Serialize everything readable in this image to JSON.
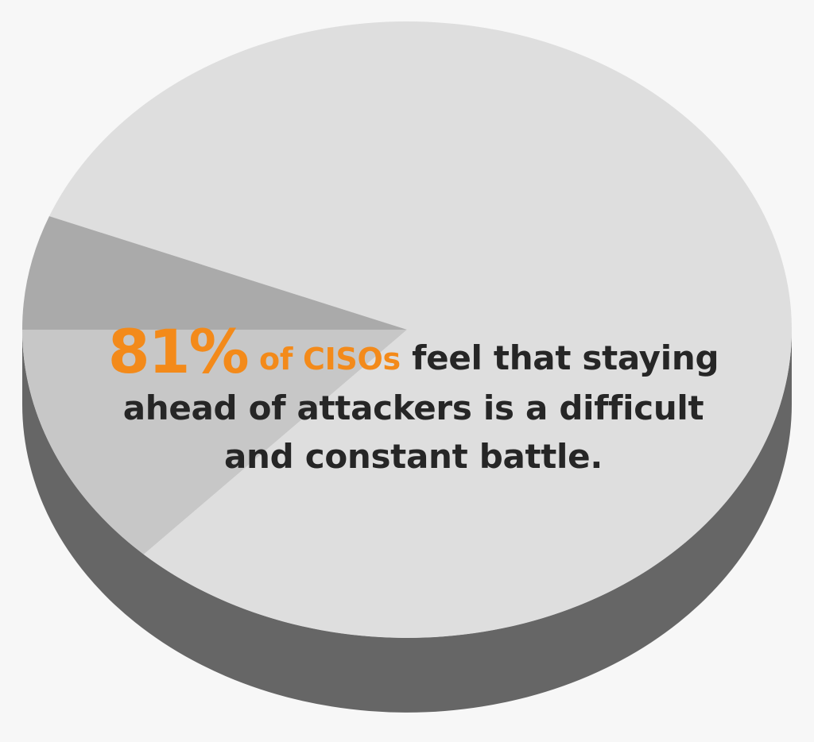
{
  "colors": {
    "background": "#f7f7f7",
    "pie_top": "#dedede",
    "pie_side": "#666666",
    "slice_2": "#c7c7c7",
    "slice_3": "#aaaaaa",
    "accent": "#f38a1a",
    "text": "#262626"
  },
  "chart_data": {
    "type": "pie",
    "style": "3d",
    "slices": [
      {
        "value": 81,
        "color": "#dedede"
      },
      {
        "value": 13,
        "color": "#c7c7c7"
      },
      {
        "value": 6,
        "color": "#aaaaaa"
      }
    ]
  },
  "caption": {
    "percent": "81%",
    "subject": "of CISOs",
    "line1_rest": "feel that staying",
    "line2": "ahead of attackers is a difficult",
    "line3": "and constant battle."
  }
}
